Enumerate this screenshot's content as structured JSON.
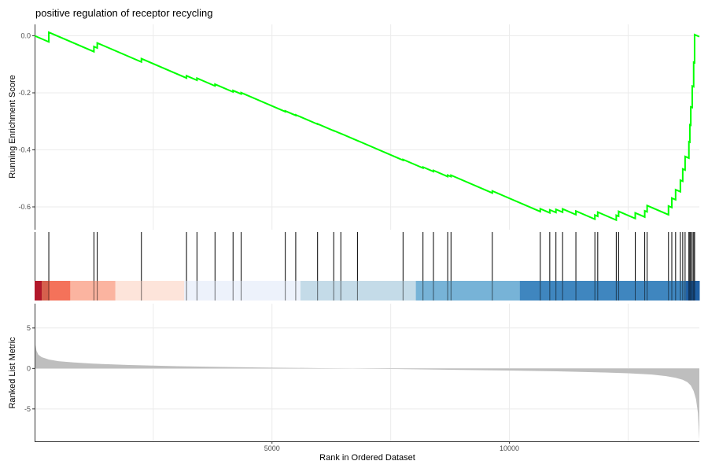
{
  "chart_data": [
    {
      "type": "line",
      "panel": "running-enrichment-score",
      "title": "positive regulation of receptor recycling",
      "ylabel": "Running Enrichment Score",
      "xlim": [
        1,
        14000
      ],
      "ylim": [
        -0.68,
        0.04
      ],
      "yticks": [
        0.0,
        -0.2,
        -0.4,
        -0.6
      ],
      "ytick_labels": [
        "0.0",
        "-0.2",
        "-0.4",
        "-0.6"
      ],
      "grid": "vertical",
      "line_color": "#00ff00",
      "hits": [
        300,
        1250,
        1320,
        2250,
        3200,
        3420,
        3800,
        4180,
        4350,
        5280,
        5500,
        5960,
        6300,
        6450,
        6800,
        7760,
        8180,
        8400,
        8700,
        8770,
        9640,
        10650,
        10850,
        10980,
        11120,
        11400,
        11800,
        11860,
        12250,
        12300,
        12650,
        12850,
        12900,
        13350,
        13420,
        13500,
        13600,
        13650,
        13700,
        13780,
        13800,
        13820,
        13850,
        13880,
        13900
      ]
    },
    {
      "type": "heatmap",
      "panel": "rank-color-bar",
      "segments": [
        {
          "start": 1,
          "end": 150,
          "color": "#b2182b"
        },
        {
          "start": 150,
          "end": 300,
          "color": "#d6604d"
        },
        {
          "start": 300,
          "end": 750,
          "color": "#f4725a"
        },
        {
          "start": 750,
          "end": 1700,
          "color": "#fbb4a0"
        },
        {
          "start": 1700,
          "end": 3150,
          "color": "#fde4da"
        },
        {
          "start": 3150,
          "end": 5600,
          "color": "#edf2fb"
        },
        {
          "start": 5600,
          "end": 8030,
          "color": "#c4dbe8"
        },
        {
          "start": 8030,
          "end": 10220,
          "color": "#77b3d7"
        },
        {
          "start": 10220,
          "end": 13720,
          "color": "#3f86bf"
        },
        {
          "start": 13720,
          "end": 14000,
          "color": "#1f5fa3"
        }
      ]
    },
    {
      "type": "area",
      "panel": "ranked-list-metric",
      "ylabel": "Ranked List Metric",
      "xlabel": "Rank in Ordered Dataset",
      "xlim": [
        1,
        14000
      ],
      "ylim": [
        -9,
        8
      ],
      "yticks": [
        5,
        0,
        -5
      ],
      "ytick_labels": [
        "5",
        "0",
        "-5"
      ],
      "xticks": [
        5000,
        10000
      ],
      "xtick_labels": [
        "5000",
        "10000"
      ],
      "grid": "vertical",
      "fill_color": "#bebebe",
      "x": [
        1,
        15,
        40,
        80,
        150,
        300,
        500,
        800,
        1200,
        2000,
        3000,
        4000,
        5000,
        6000,
        6700,
        7000,
        8000,
        9000,
        10000,
        11000,
        12000,
        12500,
        13000,
        13300,
        13500,
        13650,
        13750,
        13820,
        13880,
        13930,
        13970,
        14000
      ],
      "y": [
        3.6,
        3.0,
        2.2,
        1.7,
        1.4,
        1.1,
        0.9,
        0.75,
        0.6,
        0.42,
        0.28,
        0.18,
        0.1,
        0.04,
        0.0,
        -0.03,
        -0.1,
        -0.18,
        -0.26,
        -0.36,
        -0.5,
        -0.6,
        -0.75,
        -0.95,
        -1.15,
        -1.4,
        -1.7,
        -2.1,
        -2.8,
        -3.8,
        -5.5,
        -8.8
      ]
    }
  ]
}
